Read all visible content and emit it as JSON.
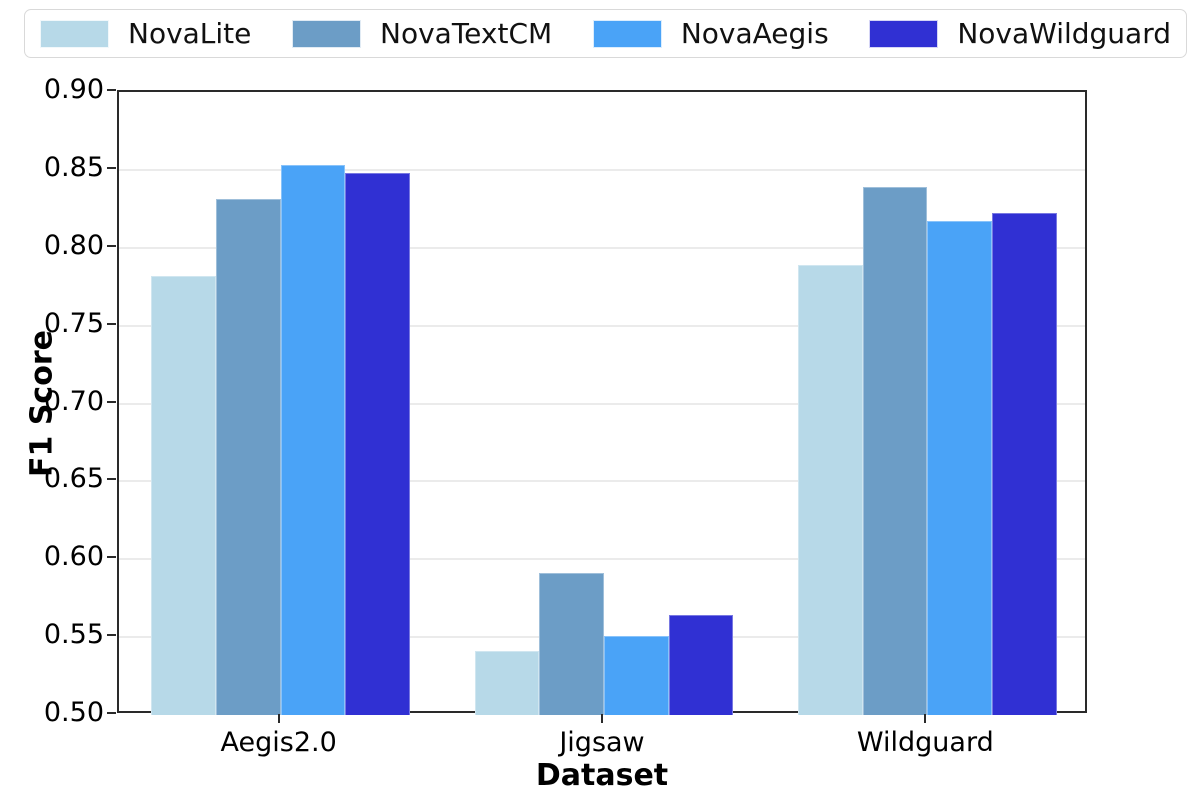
{
  "chart_data": {
    "type": "bar",
    "title": "",
    "xlabel": "Dataset",
    "ylabel": "F1 Score",
    "categories": [
      "Aegis2.0",
      "Jigsaw",
      "Wildguard"
    ],
    "series": [
      {
        "name": "NovaLite",
        "color": "#b7d9e8",
        "values": [
          0.782,
          0.541,
          0.789
        ]
      },
      {
        "name": "NovaTextCM",
        "color": "#6c9dc6",
        "values": [
          0.831,
          0.591,
          0.839
        ]
      },
      {
        "name": "NovaAegis",
        "color": "#4aa3f7",
        "values": [
          0.853,
          0.551,
          0.817
        ]
      },
      {
        "name": "NovaWildguard",
        "color": "#3030d3",
        "values": [
          0.848,
          0.564,
          0.822
        ]
      }
    ],
    "ylim": [
      0.5,
      0.9
    ],
    "yticks": [
      "0.50",
      "0.55",
      "0.60",
      "0.65",
      "0.70",
      "0.75",
      "0.80",
      "0.85",
      "0.90"
    ],
    "grid": true,
    "legend_position": "top",
    "spine_color": "#2a2a2a",
    "grid_color": "#ebebeb"
  }
}
